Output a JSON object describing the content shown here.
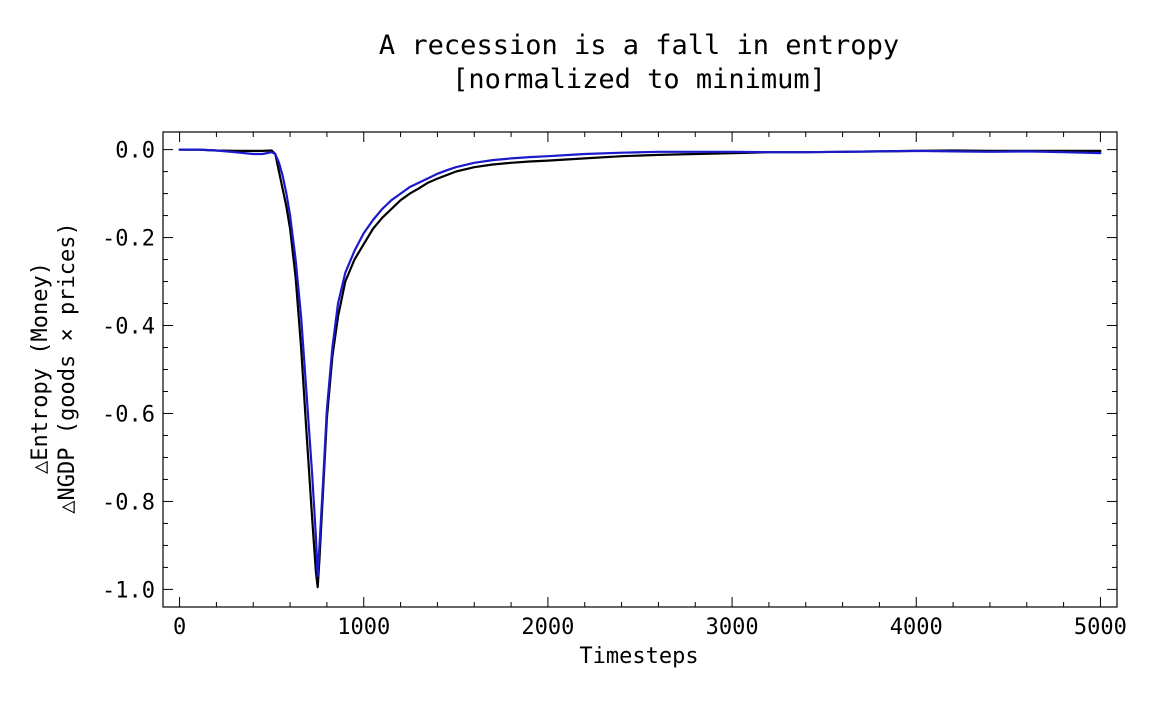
{
  "chart_data": {
    "type": "line",
    "title_line1": "A recession is a fall in entropy",
    "title_line2": "[normalized to minimum]",
    "xlabel": "Timesteps",
    "ylabel_line1": "△Entropy (Money)",
    "ylabel_line2": "△NGDP (goods × prices)",
    "xlim": [
      -90,
      5090
    ],
    "ylim": [
      -1.04,
      0.04
    ],
    "xticks": [
      0,
      1000,
      2000,
      3000,
      4000,
      5000
    ],
    "xtick_labels": [
      "0",
      "1000",
      "2000",
      "3000",
      "4000",
      "5000"
    ],
    "yticks": [
      0.0,
      -0.2,
      -0.4,
      -0.6,
      -0.8,
      -1.0
    ],
    "ytick_labels": [
      "0.0",
      "-0.2",
      "-0.4",
      "-0.6",
      "-0.8",
      "-1.0"
    ],
    "grid": false,
    "legend": "none",
    "series": [
      {
        "color": "#000000",
        "x": [
          0,
          100,
          200,
          300,
          400,
          450,
          500,
          520,
          540,
          560,
          580,
          600,
          630,
          660,
          690,
          720,
          740,
          750,
          760,
          780,
          800,
          830,
          860,
          900,
          950,
          1000,
          1050,
          1100,
          1150,
          1200,
          1250,
          1300,
          1350,
          1400,
          1450,
          1500,
          1600,
          1700,
          1800,
          1900,
          2000,
          2200,
          2400,
          2600,
          2800,
          3000,
          3200,
          3400,
          3600,
          3800,
          4000,
          4200,
          4400,
          4600,
          4800,
          5000
        ],
        "y": [
          0.0,
          0.0,
          -0.002,
          -0.003,
          -0.003,
          -0.003,
          -0.002,
          -0.01,
          -0.05,
          -0.09,
          -0.13,
          -0.18,
          -0.29,
          -0.45,
          -0.65,
          -0.84,
          -0.96,
          -0.995,
          -0.93,
          -0.77,
          -0.61,
          -0.47,
          -0.38,
          -0.3,
          -0.25,
          -0.215,
          -0.18,
          -0.155,
          -0.135,
          -0.115,
          -0.1,
          -0.088,
          -0.075,
          -0.066,
          -0.058,
          -0.05,
          -0.04,
          -0.034,
          -0.03,
          -0.027,
          -0.025,
          -0.02,
          -0.015,
          -0.012,
          -0.01,
          -0.008,
          -0.006,
          -0.006,
          -0.005,
          -0.004,
          -0.003,
          -0.002,
          -0.003,
          -0.003,
          -0.003,
          -0.003
        ]
      },
      {
        "color": "#1a1acc",
        "x": [
          0,
          100,
          200,
          300,
          400,
          450,
          500,
          520,
          540,
          560,
          580,
          600,
          630,
          660,
          690,
          720,
          740,
          750,
          760,
          780,
          800,
          830,
          860,
          900,
          950,
          1000,
          1050,
          1100,
          1150,
          1200,
          1250,
          1300,
          1350,
          1400,
          1450,
          1500,
          1600,
          1700,
          1800,
          1900,
          2000,
          2200,
          2400,
          2600,
          2800,
          3000,
          3200,
          3400,
          3600,
          3800,
          4000,
          4200,
          4400,
          4600,
          4800,
          5000
        ],
        "y": [
          0.0,
          0.0,
          -0.002,
          -0.006,
          -0.01,
          -0.01,
          -0.006,
          -0.01,
          -0.03,
          -0.06,
          -0.1,
          -0.15,
          -0.25,
          -0.38,
          -0.56,
          -0.74,
          -0.88,
          -0.97,
          -0.9,
          -0.75,
          -0.59,
          -0.45,
          -0.35,
          -0.28,
          -0.23,
          -0.19,
          -0.16,
          -0.135,
          -0.115,
          -0.1,
          -0.085,
          -0.075,
          -0.065,
          -0.055,
          -0.047,
          -0.04,
          -0.03,
          -0.024,
          -0.02,
          -0.017,
          -0.015,
          -0.01,
          -0.007,
          -0.005,
          -0.005,
          -0.005,
          -0.006,
          -0.006,
          -0.005,
          -0.004,
          -0.003,
          -0.004,
          -0.005,
          -0.004,
          -0.006,
          -0.008
        ]
      }
    ]
  }
}
